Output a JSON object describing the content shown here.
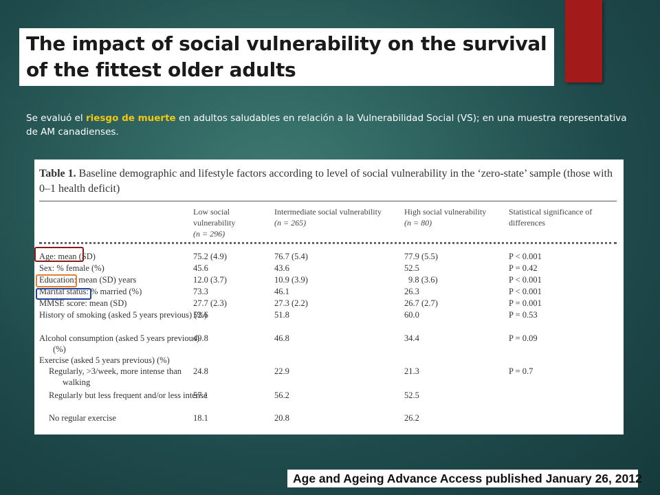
{
  "slide": {
    "title": "The impact of social vulnerability on the survival of the fittest older adults",
    "subtitle_prefix": "Se evaluó el ",
    "subtitle_highlight": "riesgo de muerte",
    "subtitle_suffix": " en adultos saludables en relación a la Vulnerabilidad Social (VS); en una muestra representativa de AM canadienses.",
    "footer": "Age and Ageing Advance Access published January 26, 2012",
    "colors": {
      "accent_bar": "#a31a1a",
      "highlight": "#f2c811",
      "box_age": "#8b1a1a",
      "box_education": "#e08030",
      "box_marital": "#2040a0"
    }
  },
  "table": {
    "caption_label": "Table 1.",
    "caption_text": " Baseline demographic and lifestyle factors according to level of social vulnerability in the ‘zero-state’ sample (those with 0–1 health deficit)",
    "headers": {
      "low": "Low social vulnerability",
      "low_n": "(n = 296)",
      "int": "Intermediate social vulnerability",
      "int_n": "(n = 265)",
      "high": "High social vulnerability",
      "high_n": "(n = 80)",
      "sig": "Statistical significance of differences"
    },
    "rows": [
      {
        "label": "Age: mean (SD)",
        "low": "75.2 (4.9)",
        "int": "76.7 (5.4)",
        "high": "77.9 (5.5)",
        "sig": "P < 0.001"
      },
      {
        "label": "Sex: % female (%)",
        "low": "45.6",
        "int": "43.6",
        "high": "52.5",
        "sig": "P = 0.42"
      },
      {
        "label": "Education: mean (SD) years",
        "low": "12.0 (3.7)",
        "int": "10.9 (3.9)",
        "high": "9.8 (3.6)",
        "sig": "P < 0.001"
      },
      {
        "label": "Marital status: % married (%)",
        "low": "73.3",
        "int": "46.1",
        "high": "26.3",
        "sig": "P < 0.001"
      },
      {
        "label": "MMSE score: mean (SD)",
        "low": "27.7 (2.3)",
        "int": "27.3 (2.2)",
        "high": "26.7 (2.7)",
        "sig": "P = 0.001"
      },
      {
        "label": "History of smoking (asked 5 years previous) (%)",
        "low": "52.6",
        "int": "51.8",
        "high": "60.0",
        "sig": "P = 0.53"
      },
      {
        "label": "Alcohol consumption (asked 5 years previous) (%)",
        "low": "49.8",
        "int": "46.8",
        "high": "34.4",
        "sig": "P = 0.09"
      },
      {
        "label": "Exercise (asked 5 years previous) (%)",
        "low": "",
        "int": "",
        "high": "",
        "sig": ""
      },
      {
        "label": "Regularly, >3/week, more intense than walking",
        "low": "24.8",
        "int": "22.9",
        "high": "21.3",
        "sig": "P = 0.7"
      },
      {
        "label": "Regularly but less frequent and/or less intense",
        "low": "57.1",
        "int": "56.2",
        "high": "52.5",
        "sig": ""
      },
      {
        "label": "No regular exercise",
        "low": "18.1",
        "int": "20.8",
        "high": "26.2",
        "sig": ""
      }
    ]
  }
}
